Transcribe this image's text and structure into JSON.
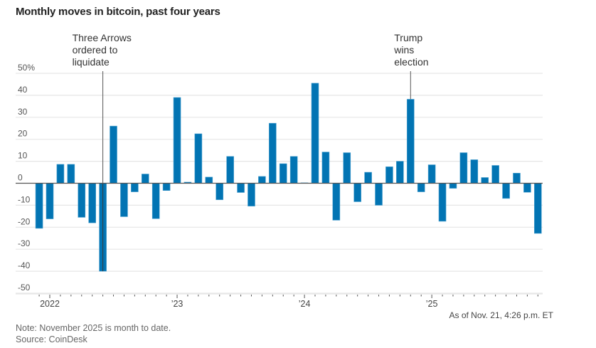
{
  "chart_data": {
    "type": "bar",
    "title": "Monthly moves in bitcoin, past four years",
    "xlabel": "",
    "ylabel": "",
    "y_unit": "%",
    "ylim": [
      -50,
      50
    ],
    "yticks": [
      50,
      40,
      30,
      20,
      10,
      0,
      -10,
      -20,
      -30,
      -40,
      -50
    ],
    "ytick_labels": [
      "50%",
      "40",
      "30",
      "20",
      "10",
      "0",
      "-10",
      "-20",
      "-30",
      "-40",
      "-50"
    ],
    "grid": true,
    "legend": "none",
    "bar_color": "#0274b3",
    "x_tick_labels": [
      {
        "label": "2022",
        "month": "2022-01"
      },
      {
        "label": "’23",
        "month": "2023-01"
      },
      {
        "label": "’24",
        "month": "2024-01"
      },
      {
        "label": "’25",
        "month": "2025-01"
      }
    ],
    "categories": [
      "2021-12",
      "2022-01",
      "2022-02",
      "2022-03",
      "2022-04",
      "2022-05",
      "2022-06",
      "2022-07",
      "2022-08",
      "2022-09",
      "2022-10",
      "2022-11",
      "2022-12",
      "2023-01",
      "2023-02",
      "2023-03",
      "2023-04",
      "2023-05",
      "2023-06",
      "2023-07",
      "2023-08",
      "2023-09",
      "2023-10",
      "2023-11",
      "2023-12",
      "2024-01",
      "2024-02",
      "2024-03",
      "2024-04",
      "2024-05",
      "2024-06",
      "2024-07",
      "2024-08",
      "2024-09",
      "2024-10",
      "2024-11",
      "2024-12",
      "2025-01",
      "2025-02",
      "2025-03",
      "2025-04",
      "2025-05",
      "2025-06",
      "2025-07",
      "2025-08",
      "2025-09",
      "2025-10",
      "2025-11"
    ],
    "values": [
      -20.5,
      -16.2,
      8.6,
      8.6,
      -15.5,
      -18.0,
      -40.0,
      26.0,
      -15.2,
      -3.9,
      4.2,
      -16.1,
      -3.3,
      39.0,
      0.5,
      22.5,
      2.8,
      -7.5,
      12.2,
      -4.2,
      -10.4,
      3.1,
      27.3,
      8.9,
      12.2,
      0.2,
      45.5,
      14.2,
      -16.8,
      13.9,
      -8.4,
      5.0,
      -10.0,
      7.5,
      10.0,
      38.2,
      -3.9,
      8.4,
      -17.3,
      -2.3,
      13.9,
      10.7,
      2.6,
      8.1,
      -6.9,
      4.6,
      -4.1,
      -22.8
    ],
    "annotations": [
      {
        "month": "2022-06",
        "lines": [
          "Three Arrows",
          "ordered to",
          "liquidate"
        ]
      },
      {
        "month": "2024-11",
        "lines": [
          "Trump",
          "wins",
          "election"
        ]
      }
    ]
  },
  "footer": {
    "as_of": "As of Nov. 21, 4:26 p.m. ET",
    "note": "Note: November 2025 is month to date.",
    "source": "Source: CoinDesk"
  }
}
